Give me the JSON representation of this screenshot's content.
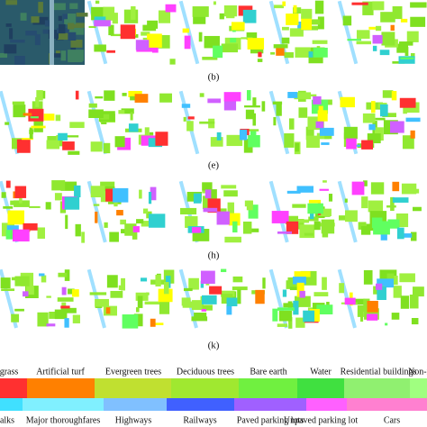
{
  "figure": {
    "panel_labels": [
      "(b)",
      "(e)",
      "(h)",
      "(k)"
    ],
    "legend": {
      "top": [
        "grass",
        "Artificial turf",
        "Evergreen trees",
        "Deciduous trees",
        "Bare earth",
        "Water",
        "Residential buildings",
        "Non-r"
      ],
      "bottom": [
        "alks",
        "Major thoroughfares",
        "Highways",
        "Railways",
        "Paved parking lots",
        "Unpaved parking lot",
        "Cars"
      ]
    }
  }
}
